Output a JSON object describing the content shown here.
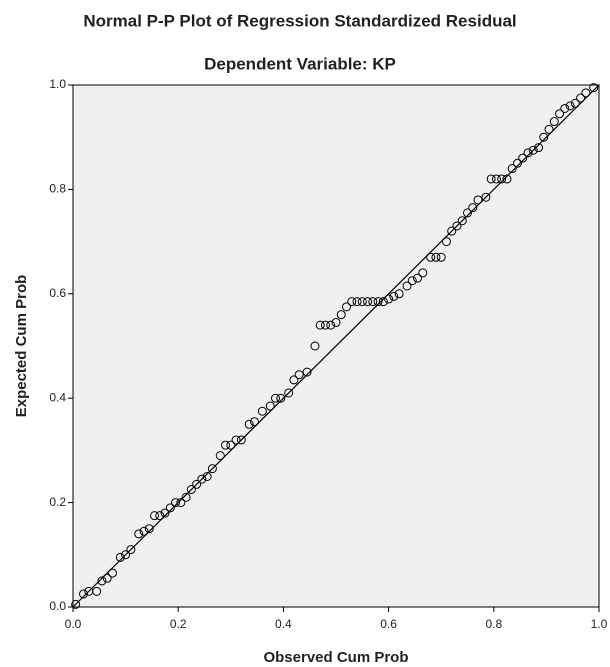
{
  "chart_data": {
    "type": "scatter",
    "title": "Normal P-P Plot of Regression Standardized Residual",
    "subtitle": "Dependent Variable: KP",
    "x_label": "Observed Cum Prob",
    "y_label": "Expected Cum Prob",
    "xlim": [
      0,
      1
    ],
    "ylim": [
      0,
      1
    ],
    "xticks": [
      {
        "value": 0,
        "label": "0.0"
      },
      0.2,
      0.4,
      0.6,
      0.8,
      {
        "value": 1,
        "label": "1.0"
      }
    ],
    "yticks": [
      {
        "value": 0,
        "label": "0.0"
      },
      0.2,
      0.4,
      0.6,
      0.8,
      {
        "value": 1,
        "label": "1.0"
      }
    ],
    "color": "#000000",
    "x": [
      0.005,
      0.02,
      0.03,
      0.045,
      0.055,
      0.065,
      0.075,
      0.09,
      0.1,
      0.11,
      0.125,
      0.135,
      0.145,
      0.155,
      0.165,
      0.175,
      0.185,
      0.195,
      0.205,
      0.215,
      0.225,
      0.235,
      0.245,
      0.255,
      0.265,
      0.28,
      0.29,
      0.3,
      0.31,
      0.32,
      0.335,
      0.345,
      0.36,
      0.375,
      0.385,
      0.395,
      0.41,
      0.42,
      0.43,
      0.445,
      0.46,
      0.47,
      0.48,
      0.49,
      0.5,
      0.51,
      0.52,
      0.53,
      0.54,
      0.55,
      0.56,
      0.57,
      0.58,
      0.59,
      0.6,
      0.61,
      0.62,
      0.635,
      0.645,
      0.655,
      0.665,
      0.68,
      0.69,
      0.7,
      0.71,
      0.72,
      0.73,
      0.74,
      0.75,
      0.76,
      0.77,
      0.785,
      0.795,
      0.805,
      0.815,
      0.825,
      0.835,
      0.845,
      0.855,
      0.865,
      0.875,
      0.885,
      0.895,
      0.905,
      0.915,
      0.925,
      0.935,
      0.945,
      0.955,
      0.965,
      0.975,
      0.99
    ],
    "values": [
      0.005,
      0.025,
      0.03,
      0.03,
      0.05,
      0.055,
      0.065,
      0.095,
      0.1,
      0.11,
      0.14,
      0.145,
      0.15,
      0.175,
      0.175,
      0.18,
      0.19,
      0.2,
      0.2,
      0.21,
      0.225,
      0.235,
      0.245,
      0.25,
      0.265,
      0.29,
      0.31,
      0.31,
      0.32,
      0.32,
      0.35,
      0.355,
      0.375,
      0.385,
      0.4,
      0.4,
      0.41,
      0.435,
      0.445,
      0.45,
      0.5,
      0.54,
      0.54,
      0.54,
      0.545,
      0.56,
      0.575,
      0.585,
      0.585,
      0.585,
      0.585,
      0.585,
      0.585,
      0.585,
      0.59,
      0.595,
      0.6,
      0.615,
      0.625,
      0.63,
      0.64,
      0.67,
      0.67,
      0.67,
      0.7,
      0.72,
      0.73,
      0.74,
      0.755,
      0.765,
      0.78,
      0.785,
      0.82,
      0.82,
      0.82,
      0.82,
      0.84,
      0.85,
      0.86,
      0.87,
      0.875,
      0.88,
      0.9,
      0.915,
      0.93,
      0.945,
      0.955,
      0.96,
      0.965,
      0.975,
      0.985,
      0.995
    ],
    "reference_line": {
      "x": [
        0,
        1
      ],
      "y": [
        0,
        1
      ]
    }
  }
}
